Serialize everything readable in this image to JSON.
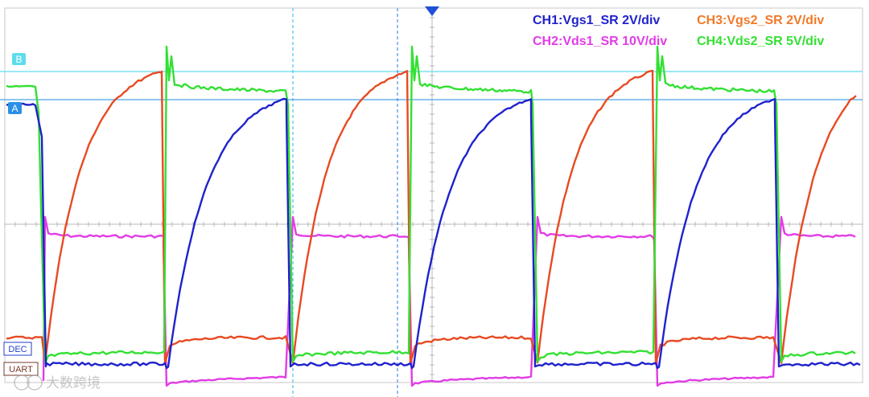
{
  "chart_data": {
    "type": "line",
    "title": "",
    "xlabel": "",
    "ylabel": "",
    "grid": true,
    "legend_placement": "top-right",
    "legend": [
      {
        "label": "CH1:Vgs1_SR 2V/div",
        "color": "#1f22cc"
      },
      {
        "label": "CH3:Vgs2_SR 2V/div",
        "color": "#f07a2a"
      },
      {
        "label": "CH2:Vds1_SR 10V/div",
        "color": "#e23ce6"
      },
      {
        "label": "CH4:Vds2_SR 5V/div",
        "color": "#33e033"
      }
    ],
    "cursors": [
      {
        "label": "B",
        "color": "#2ad4e6"
      },
      {
        "label": "A",
        "color": "#2a8fe6"
      }
    ],
    "side_tags": [
      {
        "label": "DEC",
        "color": "#1f3fcc"
      },
      {
        "label": "UART",
        "color": "#7a3a2a"
      }
    ],
    "series": [
      {
        "name": "CH1:Vgs1_SR 2V/div",
        "color": "#1f22cc",
        "role": "vgs1"
      },
      {
        "name": "CH2:Vds1_SR 10V/div",
        "color": "#e23ce6",
        "role": "vds1"
      },
      {
        "name": "CH3:Vgs2_SR 2V/div",
        "color": "#e84a22",
        "role": "vgs2"
      },
      {
        "name": "CH4:Vds2_SR 5V/div",
        "color": "#33e033",
        "role": "vds2"
      }
    ]
  },
  "watermark": "大数跨境"
}
